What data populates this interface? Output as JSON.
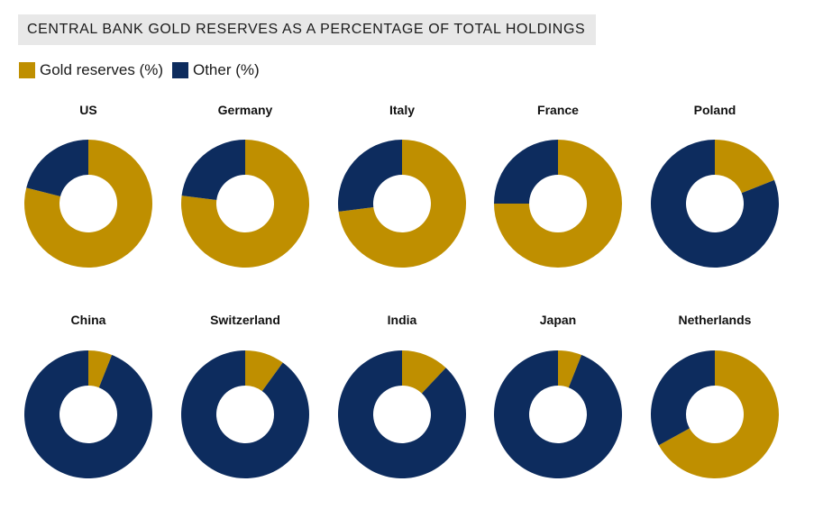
{
  "title": "CENTRAL BANK GOLD RESERVES AS A PERCENTAGE OF TOTAL HOLDINGS",
  "colors": {
    "gold": "#bf8f00",
    "other": "#0d2c5e",
    "title_bg": "#e8e8e8"
  },
  "chart_data": {
    "type": "pie",
    "style": "donut",
    "legend_position": "top-left",
    "series": [
      {
        "name": "Gold reserves (%)",
        "color": "#bf8f00"
      },
      {
        "name": "Other (%)",
        "color": "#0d2c5e"
      }
    ],
    "categories": [
      "US",
      "Germany",
      "Italy",
      "France",
      "Poland",
      "China",
      "Switzerland",
      "India",
      "Japan",
      "Netherlands"
    ],
    "gold_values": [
      79,
      77,
      73,
      75,
      19,
      6,
      10,
      12,
      6,
      67
    ],
    "other_values": [
      21,
      23,
      27,
      25,
      81,
      94,
      90,
      88,
      94,
      33
    ]
  }
}
